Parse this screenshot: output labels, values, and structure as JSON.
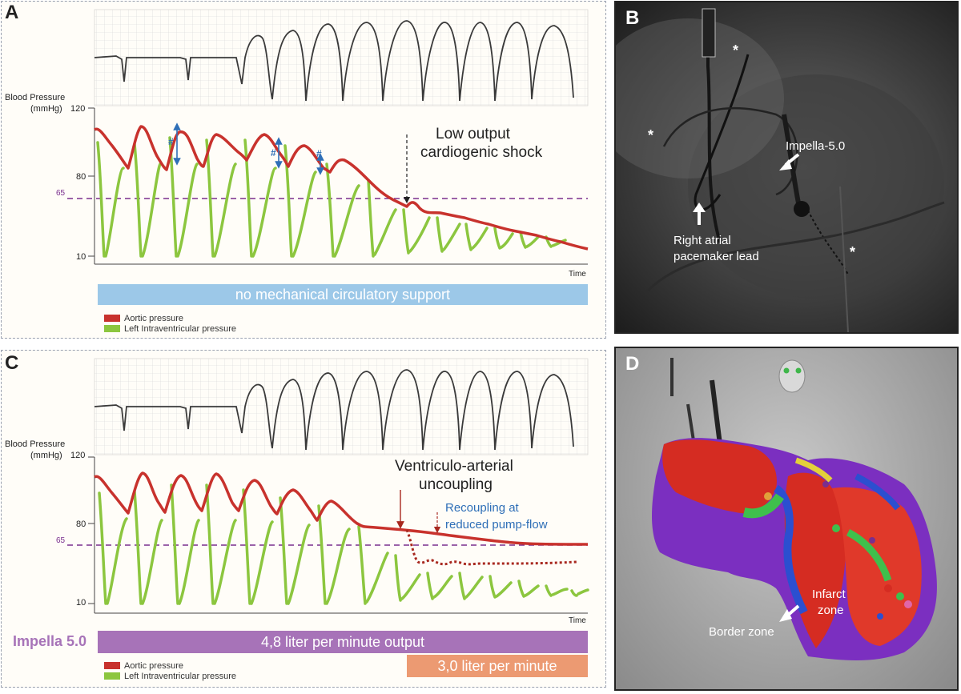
{
  "panel_a": {
    "letter": "A",
    "y_title": "Blood Pressure",
    "y_unit": "(mmHg)",
    "ticks": {
      "t120": "120",
      "t80": "80",
      "t65": "65",
      "t10": "10"
    },
    "x_label": "Time",
    "annotation_line1": "Low output",
    "annotation_line2": "cardiogenic shock",
    "hash": "#",
    "bar_label": "no mechanical circulatory support",
    "legend": {
      "aortic": "Aortic pressure",
      "lv": "Left Intraventricular pressure"
    }
  },
  "panel_c": {
    "letter": "C",
    "y_title": "Blood Pressure",
    "y_unit": "(mmHg)",
    "ticks": {
      "t120": "120",
      "t80": "80",
      "t65": "65",
      "t10": "10"
    },
    "x_label": "Time",
    "annotation1_line1": "Ventriculo-arterial",
    "annotation1_line2": "uncoupling",
    "annotation2_line1": "Recoupling at",
    "annotation2_line2": "reduced pump-flow",
    "device": "Impella 5.0",
    "bar1_label": "4,8 liter per minute output",
    "bar2_label": "3,0 liter per minute",
    "legend": {
      "aortic": "Aortic pressure",
      "lv": "Left Intraventricular pressure"
    }
  },
  "panel_b": {
    "letter": "B",
    "label_impella": "Impella-5.0",
    "label_lead_line1": "Right atrial",
    "label_lead_line2": "pacemaker lead",
    "star": "*"
  },
  "panel_d": {
    "letter": "D",
    "label_infarct_line1": "Infarct",
    "label_infarct_line2": "zone",
    "label_border": "Border zone"
  },
  "colors": {
    "aortic": "#c8322d",
    "lv": "#8cc63f",
    "threshold": "#7a2e8e",
    "bar_blue": "#9cc8e8",
    "bar_purple": "#a773b8",
    "bar_orange": "#ec9a72",
    "impella_text": "#a773b8",
    "recoupling_text": "#2f6fb7",
    "hash_arrow": "#2f6fb7"
  }
}
